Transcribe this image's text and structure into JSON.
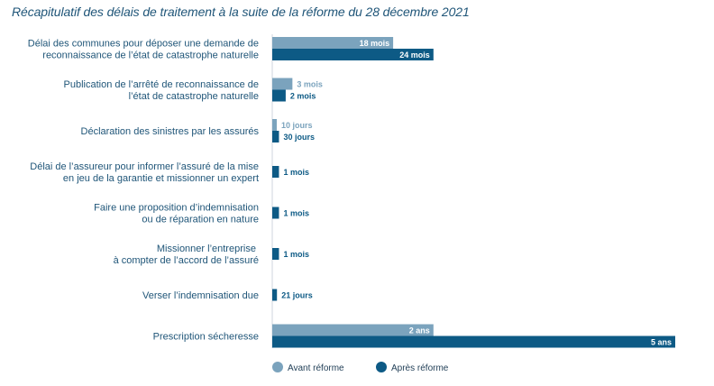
{
  "chart_data": {
    "type": "bar",
    "orientation": "horizontal",
    "title": "Récapitulatif des délais de traitement à la suite de la réforme du 28 décembre 2021",
    "categories": [
      [
        "Délai des communes pour déposer une demande de",
        "reconnaissance de l’état de catastrophe naturelle"
      ],
      [
        "Publication de l’arrêté de reconnaissance de",
        "l’état de catastrophe naturelle"
      ],
      [
        "Déclaration des sinistres par les assurés"
      ],
      [
        "Délai de l’assureur pour informer l’assuré de la mise",
        "en jeu de la garantie et missionner un expert"
      ],
      [
        "Faire une proposition d’indemnisation",
        "ou de réparation en nature"
      ],
      [
        "Missionner l’entreprise ",
        "à compter de l’accord de l’assuré"
      ],
      [
        "Verser l’indemnisation due"
      ],
      [
        "Prescription sécheresse"
      ]
    ],
    "unit": "months",
    "series": [
      {
        "name": "Avant réforme",
        "color": "#7ba3bd",
        "values": [
          18,
          3,
          0.333,
          null,
          null,
          null,
          null,
          24
        ],
        "labels": [
          "18 mois",
          "3 mois",
          "10 jours",
          "",
          "",
          "",
          "",
          "2 ans"
        ]
      },
      {
        "name": "Après réforme",
        "color": "#0d5a85",
        "values": [
          24,
          2,
          1,
          1,
          1,
          1,
          0.7,
          60
        ],
        "labels": [
          "24 mois",
          "2 mois",
          "30 jours",
          "1 mois",
          "1 mois",
          "1 mois",
          "21 jours",
          "5 ans"
        ]
      }
    ],
    "legend_position": "bottom"
  }
}
